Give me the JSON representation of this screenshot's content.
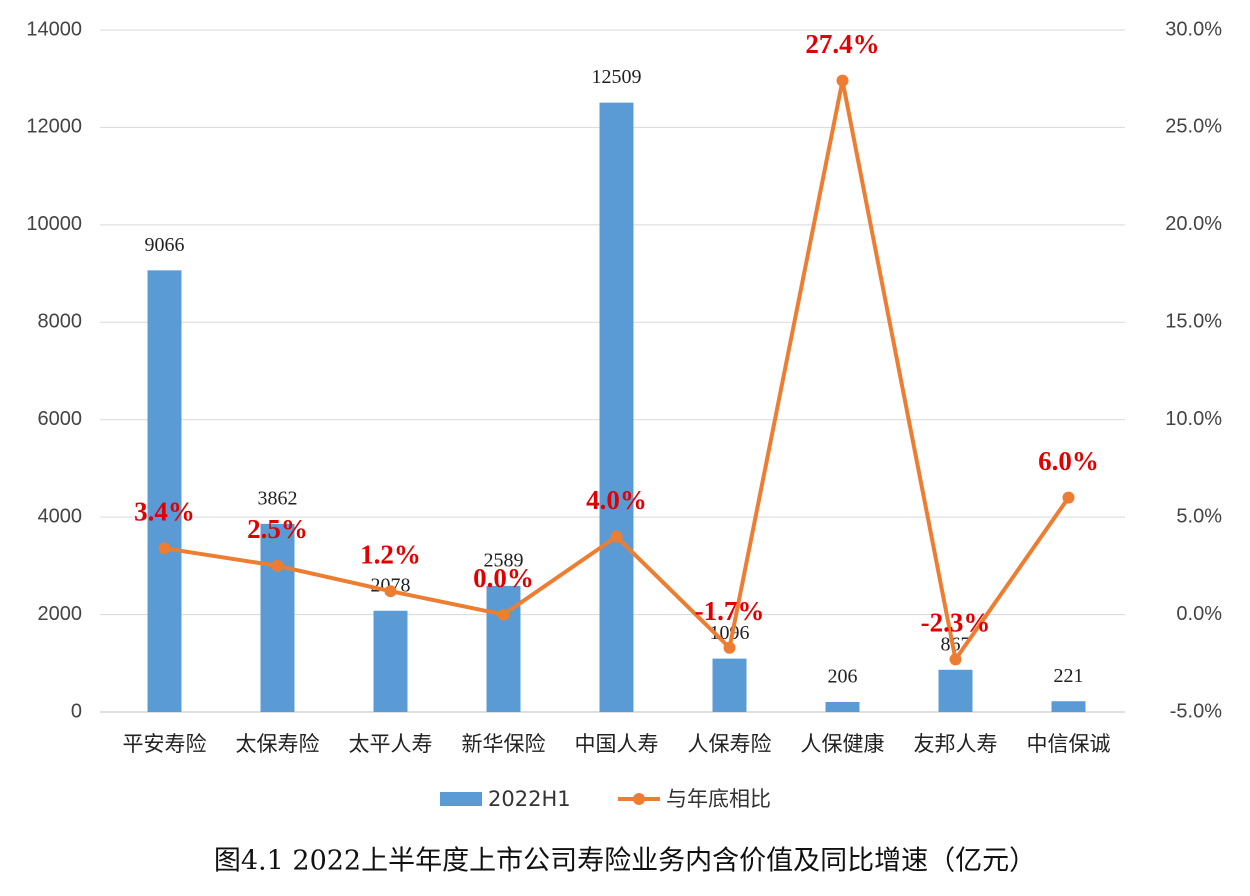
{
  "chart_data": {
    "type": "combo",
    "title": "图4.1  2022上半年度上市公司寿险业务内含价值及同比增速（亿元）",
    "categories": [
      "平安寿险",
      "太保寿险",
      "太平人寿",
      "新华保险",
      "中国人寿",
      "人保寿险",
      "人保健康",
      "友邦人寿",
      "中信保诚"
    ],
    "series": [
      {
        "name": "2022H1",
        "type": "bar",
        "color": "#5b9bd5",
        "values": [
          9066,
          3862,
          2078,
          2589,
          12509,
          1096,
          206,
          867,
          221
        ]
      },
      {
        "name": "与年底相比",
        "type": "line",
        "axis": "y2",
        "color": "#ed7d31",
        "values": [
          3.4,
          2.5,
          1.2,
          0.0,
          4.0,
          -1.7,
          27.4,
          -2.3,
          6.0
        ],
        "value_labels": [
          "3.4%",
          "2.5%",
          "1.2%",
          "0.0%",
          "4.0%",
          "-1.7%",
          "27.4%",
          "-2.3%",
          "6.0%"
        ]
      }
    ],
    "ylim": [
      0,
      14000
    ],
    "yticks": [
      0,
      2000,
      4000,
      6000,
      8000,
      10000,
      12000,
      14000
    ],
    "y2lim": [
      -5,
      30
    ],
    "y2ticks": [
      {
        "value": -5,
        "label": "-5.0%"
      },
      {
        "value": 0,
        "label": "0.0%"
      },
      {
        "value": 5,
        "label": "5.0%"
      },
      {
        "value": 10,
        "label": "10.0%"
      },
      {
        "value": 15,
        "label": "15.0%"
      },
      {
        "value": 20,
        "label": "20.0%"
      },
      {
        "value": 25,
        "label": "25.0%"
      },
      {
        "value": 30,
        "label": "30.0%"
      }
    ],
    "grid": true,
    "legend": "bottom"
  }
}
